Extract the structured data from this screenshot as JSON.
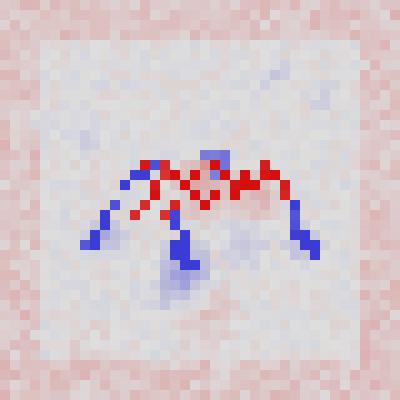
{
  "visualization": {
    "kind": "pixel-attribution-heatmap",
    "grid": {
      "rows": 40,
      "cols": 40
    },
    "color_scale": {
      "negative": "#3b3bd6",
      "neutral": "#dedede",
      "positive": "#d40f0f"
    },
    "background": "#dcdcdc"
  }
}
